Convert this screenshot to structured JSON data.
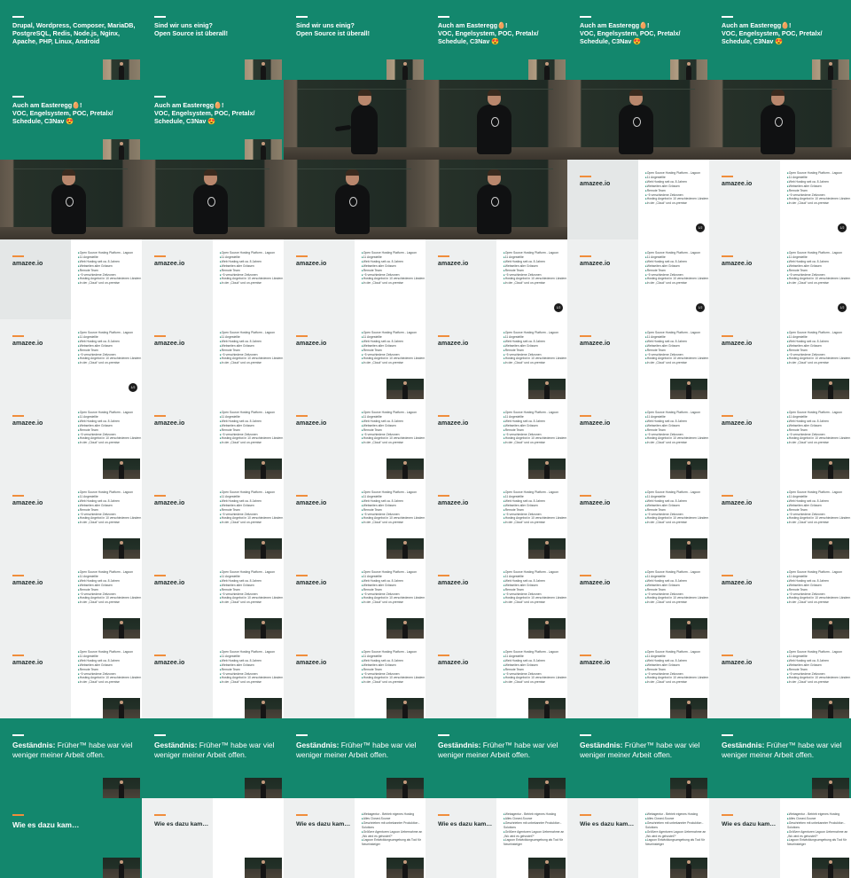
{
  "slides": {
    "tech_list": "Drupal, Wordpress, Composer, MariaDB, PostgreSQL, Redis, Node.js, Nginx, Apache, PHP, Linux, Android",
    "open_source": "Sind wir uns einig?\nOpen Source ist überall!",
    "easteregg": "Auch am Easteregg🥚!\nVOC, Engelsystem, POC, Pretalx/\nSchedule, C3Nav 😍",
    "company_logo": "amazee.io",
    "company_bullets": [
      "Open Source Hosting Platform - Lagoon",
      "11 Angestellte",
      "Web Hosting seit ca. 8 Jahren",
      "Webseiten aller Grössen",
      "Remote Team",
      "~5 verschiedene Zeitzonen",
      "Hosting Angebot in 10 verschiedenen Ländern",
      "In der „Cloud“ und on-premise"
    ],
    "slide_badge": "1/2",
    "confession_label": "Geständnis:",
    "confession_text": " Früher™ habe war viel weniger meiner Arbeit offen.",
    "how_title": "Wie es dazu kam…",
    "how_bullets": [
      "Webagentur - Betrieb eigenes Hosting",
      "Alles Closed-Source",
      "Geschrieben mit unbekannter Produktion - Solutions",
      "Größere Agenturen Lagoon Uebernahme an „Wo wird es gehostet?“",
      "Lagoon Entwicklungsumgebung als Tool für Neueinsteiger"
    ]
  }
}
